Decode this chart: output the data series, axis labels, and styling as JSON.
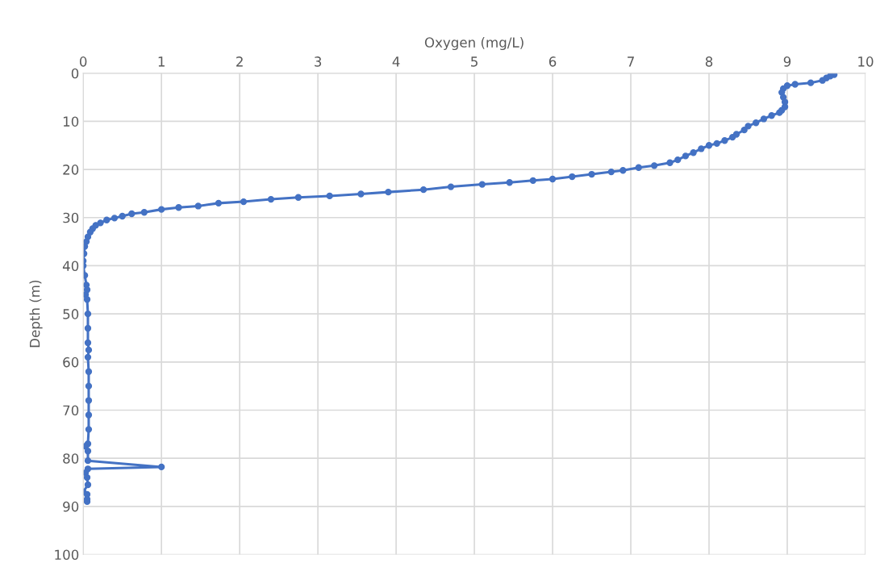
{
  "chart_data": {
    "type": "line",
    "xlabel": "Oxygen (mg/L)",
    "ylabel": "Depth (m)",
    "xlim": [
      0,
      10
    ],
    "xticks": [
      0,
      1,
      2,
      3,
      4,
      5,
      6,
      7,
      8,
      9,
      10
    ],
    "ylim": [
      100,
      0
    ],
    "yticks": [
      0,
      10,
      20,
      30,
      40,
      50,
      60,
      70,
      80,
      90,
      100
    ],
    "grid": true,
    "marker": "circle",
    "line_style": "solid",
    "legend": false,
    "series": [
      {
        "color": "#4472c4",
        "x": [
          9.6,
          9.55,
          9.5,
          9.45,
          9.3,
          9.1,
          9.0,
          8.95,
          8.93,
          8.95,
          8.97,
          8.97,
          8.93,
          8.9,
          8.8,
          8.7,
          8.6,
          8.5,
          8.45,
          8.35,
          8.3,
          8.2,
          8.1,
          8.0,
          7.9,
          7.8,
          7.7,
          7.6,
          7.5,
          7.3,
          7.1,
          6.9,
          6.75,
          6.5,
          6.25,
          6.0,
          5.75,
          5.45,
          5.1,
          4.7,
          4.35,
          3.9,
          3.55,
          3.15,
          2.75,
          2.4,
          2.05,
          1.73,
          1.47,
          1.22,
          1.0,
          0.78,
          0.62,
          0.5,
          0.4,
          0.3,
          0.22,
          0.16,
          0.12,
          0.09,
          0.06,
          0.04,
          0.02,
          0.01,
          0.0,
          0.0,
          0.02,
          0.04,
          0.05,
          0.03,
          0.05,
          0.06,
          0.06,
          0.06,
          0.07,
          0.06,
          0.07,
          0.07,
          0.07,
          0.07,
          0.07,
          0.06,
          0.03,
          0.06,
          0.06,
          1.0,
          0.06,
          0.03,
          0.05,
          0.06,
          0.0,
          0.05,
          0.05,
          0.05
        ],
        "values": [
          0.3,
          0.6,
          1.0,
          1.5,
          2.0,
          2.3,
          2.6,
          3.2,
          4,
          5,
          6,
          7,
          7.7,
          8.2,
          8.8,
          9.5,
          10.3,
          11,
          11.8,
          12.7,
          13.3,
          14,
          14.6,
          15,
          15.7,
          16.5,
          17.2,
          18,
          18.6,
          19.2,
          19.6,
          20.2,
          20.5,
          21,
          21.5,
          22,
          22.3,
          22.7,
          23.1,
          23.6,
          24.2,
          24.7,
          25.1,
          25.5,
          25.8,
          26.2,
          26.7,
          27.0,
          27.6,
          27.9,
          28.3,
          28.9,
          29.2,
          29.7,
          30.1,
          30.5,
          31.1,
          31.6,
          32.3,
          33,
          34,
          35,
          36,
          37.5,
          39,
          40,
          42,
          44,
          45,
          46,
          47,
          50,
          53,
          56,
          57.5,
          59,
          62,
          65,
          68,
          71,
          74,
          77,
          77.5,
          78.5,
          80.5,
          81.8,
          82.2,
          83,
          84,
          85.5,
          87,
          87.5,
          88.5,
          89
        ]
      }
    ]
  }
}
